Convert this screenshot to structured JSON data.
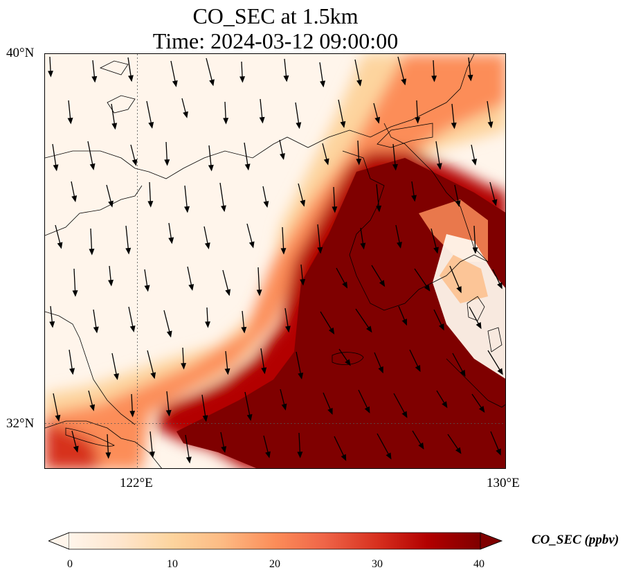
{
  "title": {
    "line1": "CO_SEC at 1.5km",
    "line2": "Time: 2024-03-12 09:00:00"
  },
  "map": {
    "extent": {
      "lon_min": 120.4,
      "lon_max": 130.0,
      "lat_min": 31.0,
      "lat_max": 40.0
    },
    "lat_ticks": [
      "40°N",
      "32°N"
    ],
    "lon_ticks": [
      "122°E",
      "130°E"
    ],
    "gridlines": {
      "lon": 122,
      "lat": 32,
      "style": "dotted"
    },
    "field": "CO_SEC",
    "colormap": "OrRd",
    "high_concentration_region": "southeast of the Yellow Sea, across the Korean Peninsula and the East China Sea",
    "wind_arrows": "black, pointing mostly south to south-southeast"
  },
  "colorbar": {
    "ticks": [
      "0",
      "10",
      "20",
      "30",
      "40"
    ],
    "label": "CO_SEC (ppbv)",
    "extend": "both",
    "colors": [
      "#fff5eb",
      "#fee6ce",
      "#fdd49e",
      "#fdbb84",
      "#fc8d59",
      "#ef6548",
      "#d7301f",
      "#b30000",
      "#7f0000"
    ]
  }
}
